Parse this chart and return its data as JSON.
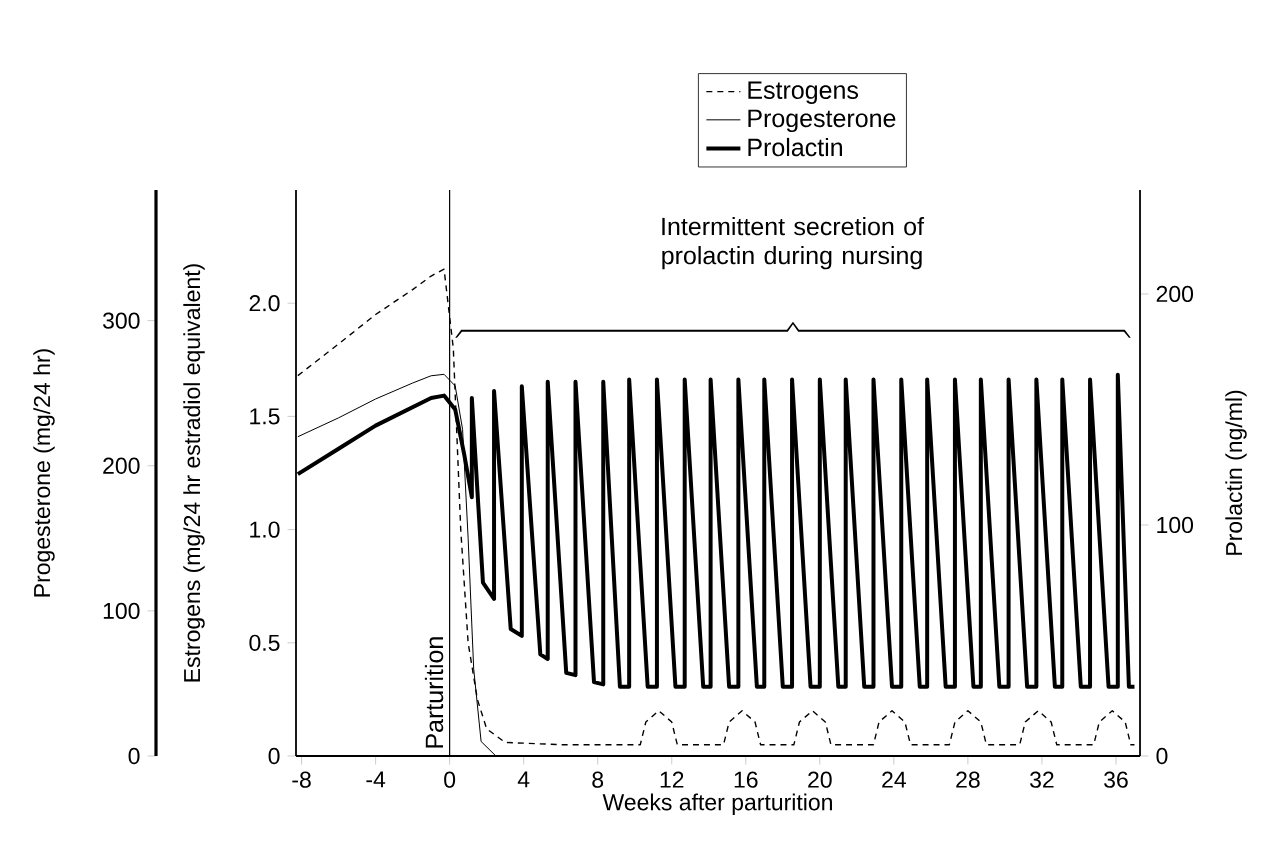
{
  "chart_data": {
    "type": "line",
    "xlabel": "Weeks after parturition",
    "ylabel": "Estrogens (mg/24 hr estradiol equivalent)",
    "y2label": "Prolactin (ng/ml)",
    "y3label": "Progesterone (mg/24 hr)",
    "xlim": [
      -8.3,
      37.3
    ],
    "xticks": [
      -8,
      -4,
      0,
      4,
      8,
      12,
      16,
      20,
      24,
      28,
      32,
      36
    ],
    "ylim": [
      0,
      2.5
    ],
    "yticks": [
      0,
      0.5,
      {
        "value": 1,
        "label": "1.0"
      },
      1.5,
      {
        "value": 2,
        "label": "2.0"
      }
    ],
    "y2lim": [
      0,
      245
    ],
    "y2ticks": [
      0,
      100,
      200
    ],
    "y3lim": [
      0,
      390
    ],
    "y3ticks": [
      0,
      100,
      200,
      300
    ],
    "legend": "top",
    "marker": "none",
    "grid": false,
    "ref_lines": [
      {
        "axis": "x",
        "value": 0,
        "label": "Parturition"
      }
    ],
    "annotations": [
      "Intermittent secretion of prolactin during nursing"
    ],
    "series": [
      {
        "name": "Estrogens",
        "color": "#000000",
        "line_style": "dashed",
        "axis": "y",
        "x": [
          -8.2,
          -6,
          -4,
          -2,
          -1,
          -0.3,
          0.2,
          0.6,
          1.0,
          1.5,
          2.0,
          3.0,
          6.0,
          10.3,
          10.6,
          11.3,
          12.0,
          12.3,
          14.8,
          15.1,
          15.8,
          16.5,
          16.8,
          18.6,
          18.9,
          19.6,
          20.3,
          20.6,
          22.9,
          23.2,
          23.9,
          24.6,
          24.9,
          27.0,
          27.3,
          28.0,
          28.7,
          29.0,
          30.8,
          31.1,
          31.8,
          32.5,
          32.8,
          34.8,
          35.1,
          35.8,
          36.5,
          36.8,
          37.0
        ],
        "values": [
          1.68,
          1.82,
          1.95,
          2.06,
          2.12,
          2.15,
          1.8,
          1.0,
          0.5,
          0.25,
          0.12,
          0.06,
          0.05,
          0.05,
          0.15,
          0.2,
          0.15,
          0.05,
          0.05,
          0.15,
          0.2,
          0.15,
          0.05,
          0.05,
          0.15,
          0.2,
          0.15,
          0.05,
          0.05,
          0.15,
          0.2,
          0.15,
          0.05,
          0.05,
          0.15,
          0.2,
          0.15,
          0.05,
          0.05,
          0.15,
          0.2,
          0.15,
          0.05,
          0.05,
          0.15,
          0.2,
          0.15,
          0.05,
          0.05
        ]
      },
      {
        "name": "Progesterone",
        "color": "#000000",
        "line_style": "solid",
        "axis": "y3",
        "x": [
          -8.2,
          -6,
          -4,
          -2,
          -1,
          -0.3,
          0.3,
          0.7,
          1.0,
          1.3,
          1.7,
          2.5
        ],
        "values": [
          220,
          233,
          246,
          257,
          262,
          263,
          255,
          225,
          150,
          60,
          10,
          0
        ]
      },
      {
        "name": "Prolactin",
        "color": "#000000",
        "line_style": "solid",
        "axis": "y2",
        "x": [
          -8.2,
          -6,
          -4,
          -2,
          -1,
          -0.3,
          0.3,
          0.8,
          1.2,
          1.2,
          1.8,
          2.4,
          2.4,
          3.3,
          3.9,
          3.9,
          4.9,
          5.3,
          5.3,
          6.3,
          6.8,
          6.8,
          7.8,
          8.3,
          8.3,
          9.2,
          9.7,
          9.7,
          10.7,
          11.2,
          11.2,
          12.2,
          12.7,
          12.7,
          13.7,
          14.1,
          14.1,
          15.1,
          15.6,
          15.6,
          16.6,
          17.0,
          17.0,
          18.0,
          18.5,
          18.5,
          19.5,
          20.0,
          20.0,
          21.0,
          21.4,
          21.4,
          22.4,
          22.9,
          22.9,
          23.9,
          24.4,
          24.4,
          25.4,
          25.8,
          25.8,
          26.8,
          27.3,
          27.3,
          28.3,
          28.7,
          28.7,
          29.7,
          30.2,
          30.2,
          31.2,
          31.7,
          31.7,
          32.7,
          33.1,
          33.1,
          34.1,
          34.6,
          34.6,
          35.6,
          36.1,
          36.1,
          36.7,
          37.0
        ],
        "values": [
          122,
          133,
          143,
          151,
          155,
          156,
          150,
          130,
          112,
          155,
          75,
          68,
          158,
          55,
          52,
          160,
          44,
          42,
          162,
          36,
          35,
          162,
          32,
          31,
          162,
          30,
          30,
          163,
          30,
          30,
          163,
          30,
          30,
          163,
          30,
          30,
          163,
          30,
          30,
          163,
          30,
          30,
          163,
          30,
          30,
          163,
          30,
          30,
          163,
          30,
          30,
          163,
          30,
          30,
          163,
          30,
          30,
          163,
          30,
          30,
          163,
          30,
          30,
          163,
          30,
          30,
          163,
          30,
          30,
          163,
          30,
          30,
          163,
          30,
          30,
          163,
          30,
          30,
          163,
          30,
          30,
          165,
          30,
          30
        ]
      }
    ]
  }
}
